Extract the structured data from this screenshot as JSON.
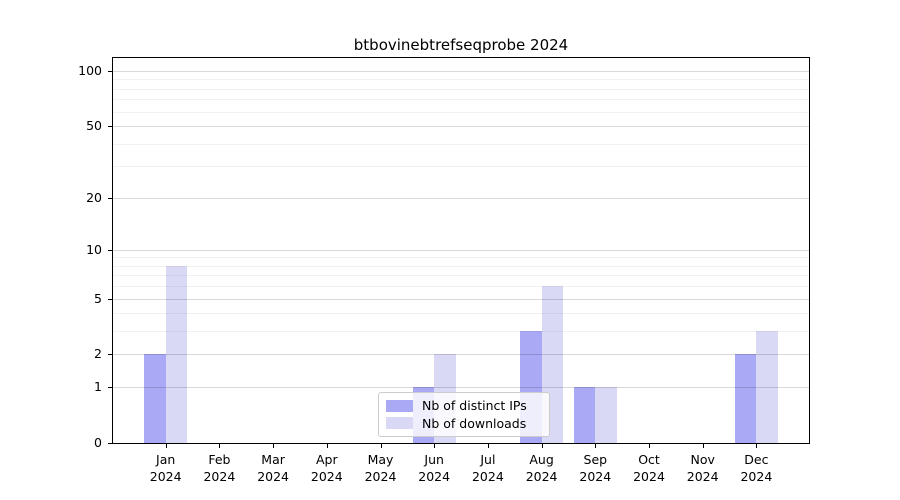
{
  "chart_data": {
    "type": "bar",
    "title": "btbovinebtrefseqprobe 2024",
    "year_label": "2024",
    "categories": [
      "Jan",
      "Feb",
      "Mar",
      "Apr",
      "May",
      "Jun",
      "Jul",
      "Aug",
      "Sep",
      "Oct",
      "Nov",
      "Dec"
    ],
    "series": [
      {
        "name": "Nb of distinct IPs",
        "color": "#a9a9f5",
        "values": [
          2,
          0,
          0,
          0,
          0,
          1,
          0,
          3,
          1,
          0,
          0,
          2
        ]
      },
      {
        "name": "Nb of downloads",
        "color": "#d9d9f6",
        "values": [
          8,
          0,
          0,
          0,
          0,
          2,
          0,
          6,
          1,
          0,
          0,
          3
        ]
      }
    ],
    "yscale": "log1p",
    "ylim": [
      0,
      100
    ],
    "yticks": [
      100,
      50,
      20,
      10,
      5,
      2,
      1,
      0
    ],
    "minor_yticks": [
      3,
      4,
      6,
      7,
      8,
      9,
      30,
      40,
      60,
      70,
      80,
      90
    ],
    "grid": true,
    "legend_position": "lower center"
  }
}
